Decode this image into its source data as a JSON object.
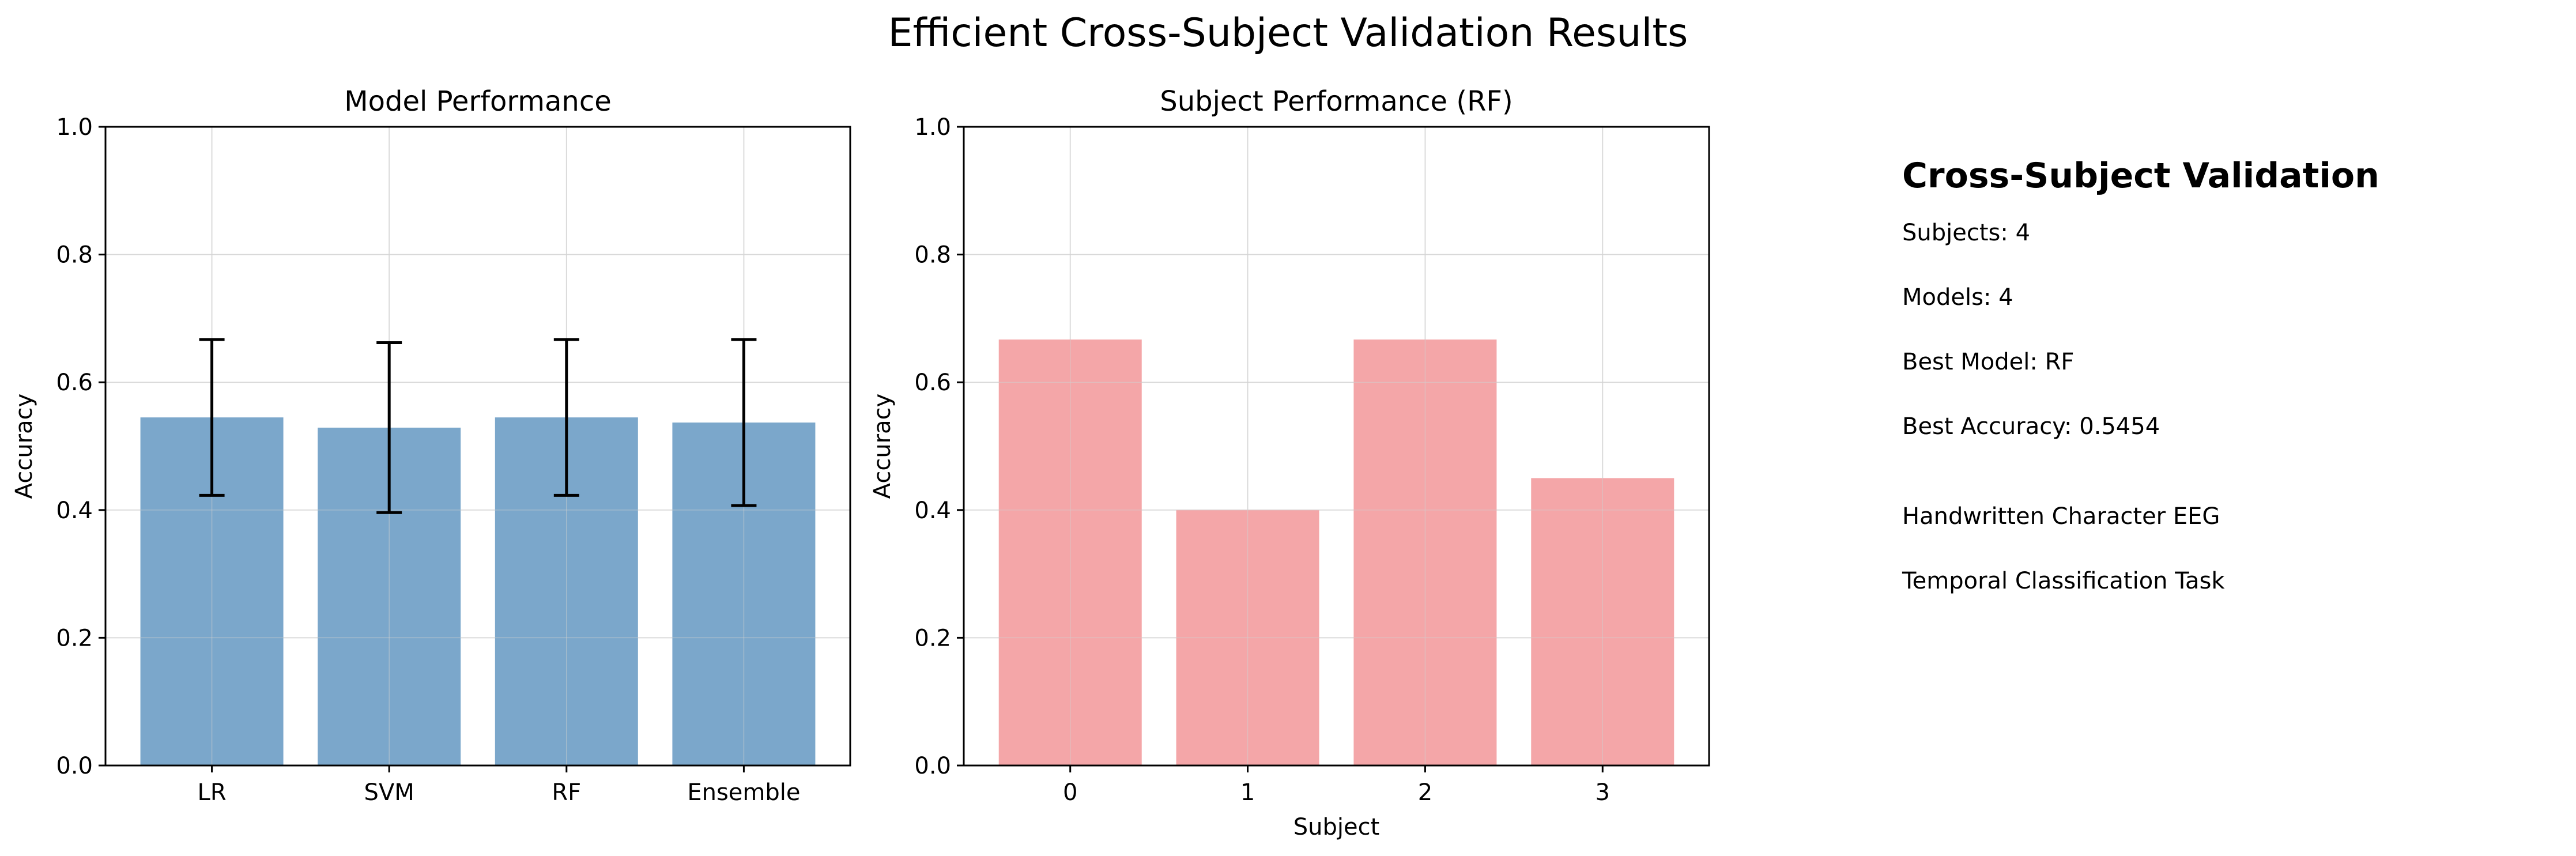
{
  "figure": {
    "suptitle": "Efficient Cross-Subject Validation Results"
  },
  "chart_data": [
    {
      "type": "bar",
      "title": "Model Performance",
      "xlabel": "",
      "ylabel": "Accuracy",
      "categories": [
        "LR",
        "SVM",
        "RF",
        "Ensemble"
      ],
      "values": [
        0.545,
        0.529,
        0.545,
        0.537
      ],
      "error": [
        0.122,
        0.133,
        0.122,
        0.13
      ],
      "ylim": [
        0,
        1.0
      ],
      "yticks": [
        0.0,
        0.2,
        0.4,
        0.6,
        0.8,
        1.0
      ],
      "grid": true,
      "color": "#7ba7cb"
    },
    {
      "type": "bar",
      "title": "Subject Performance (RF)",
      "xlabel": "Subject",
      "ylabel": "Accuracy",
      "categories": [
        "0",
        "1",
        "2",
        "3"
      ],
      "values": [
        0.667,
        0.4,
        0.667,
        0.45
      ],
      "ylim": [
        0,
        1.0
      ],
      "yticks": [
        0.0,
        0.2,
        0.4,
        0.6,
        0.8,
        1.0
      ],
      "grid": true,
      "color": "#f4a6a8"
    }
  ],
  "info_panel": {
    "heading": "Cross-Subject Validation",
    "lines": [
      "Subjects: 4",
      "Models: 4",
      "Best Model: RF",
      "Best Accuracy: 0.5454"
    ],
    "notes": [
      "Handwritten Character EEG",
      "Temporal Classification Task"
    ]
  }
}
